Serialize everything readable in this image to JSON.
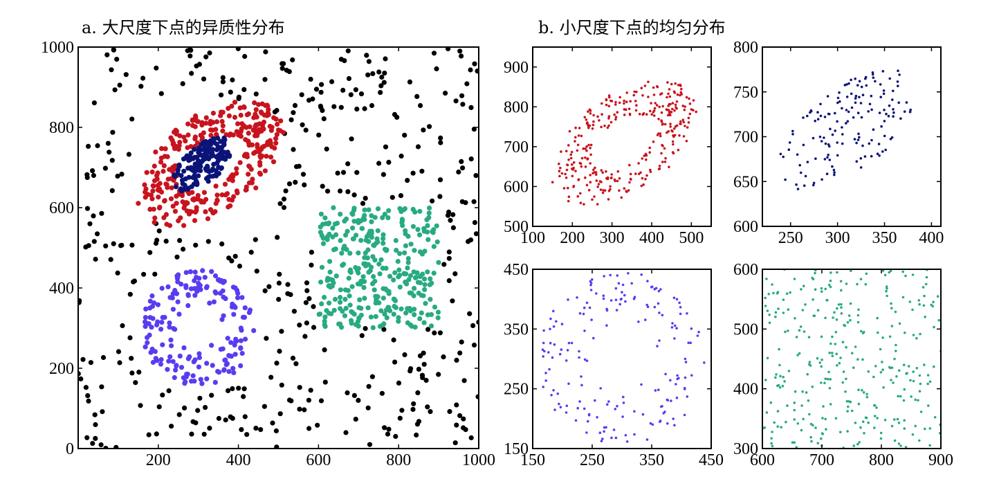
{
  "panels": {
    "a_title": "a. 大尺度下点的异质性分布",
    "b_title": "b. 小尺度下点的均匀分布"
  },
  "colors": {
    "background": "#000000",
    "red": "#c8141e",
    "navy": "#0a1478",
    "purple": "#5a3cf0",
    "teal": "#28aa82"
  },
  "chart_data": [
    {
      "id": "main",
      "type": "scatter",
      "title": "a. 大尺度下点的异质性分布",
      "xlim": [
        0,
        1000
      ],
      "ylim": [
        0,
        1000
      ],
      "xticks": [
        200,
        400,
        600,
        800,
        1000
      ],
      "yticks": [
        0,
        200,
        400,
        600,
        800,
        1000
      ],
      "series": [
        {
          "color_key": "background",
          "pattern": "uniform",
          "x_range": [
            0,
            1000
          ],
          "y_range": [
            0,
            1000
          ],
          "count": 400
        },
        {
          "color_key": "red",
          "pattern": "ellipse-ring",
          "center": [
            330,
            710
          ],
          "approx_count": 320
        },
        {
          "color_key": "navy",
          "pattern": "ellipse",
          "center": [
            310,
            715
          ],
          "approx_count": 140
        },
        {
          "color_key": "purple",
          "pattern": "ellipse-ring",
          "center": [
            300,
            300
          ],
          "approx_count": 180
        },
        {
          "color_key": "teal",
          "pattern": "square",
          "x_range": [
            600,
            900
          ],
          "y_range": [
            300,
            600
          ],
          "approx_count": 320
        }
      ]
    },
    {
      "id": "zoom-red",
      "type": "scatter",
      "xlim": [
        100,
        550
      ],
      "ylim": [
        500,
        950
      ],
      "xticks": [
        100,
        200,
        300,
        400,
        500
      ],
      "yticks": [
        500,
        600,
        700,
        800,
        900
      ],
      "series": [
        {
          "color_key": "red",
          "pattern": "ellipse-ring",
          "center": [
            330,
            710
          ]
        }
      ]
    },
    {
      "id": "zoom-navy",
      "type": "scatter",
      "xlim": [
        220,
        410
      ],
      "ylim": [
        600,
        800
      ],
      "xticks": [
        250,
        300,
        350,
        400
      ],
      "yticks": [
        600,
        650,
        700,
        750,
        800
      ],
      "series": [
        {
          "color_key": "navy",
          "pattern": "ellipse",
          "center": [
            310,
            715
          ]
        }
      ]
    },
    {
      "id": "zoom-purple",
      "type": "scatter",
      "xlim": [
        150,
        450
      ],
      "ylim": [
        150,
        450
      ],
      "xticks": [
        150,
        250,
        350,
        450
      ],
      "yticks": [
        150,
        250,
        350,
        450
      ],
      "series": [
        {
          "color_key": "purple",
          "pattern": "ellipse-ring",
          "center": [
            300,
            300
          ]
        }
      ]
    },
    {
      "id": "zoom-teal",
      "type": "scatter",
      "xlim": [
        600,
        900
      ],
      "ylim": [
        300,
        600
      ],
      "xticks": [
        600,
        700,
        800,
        900
      ],
      "yticks": [
        300,
        400,
        500,
        600
      ],
      "series": [
        {
          "color_key": "teal",
          "pattern": "square",
          "x_range": [
            600,
            900
          ],
          "y_range": [
            300,
            600
          ]
        }
      ]
    }
  ]
}
